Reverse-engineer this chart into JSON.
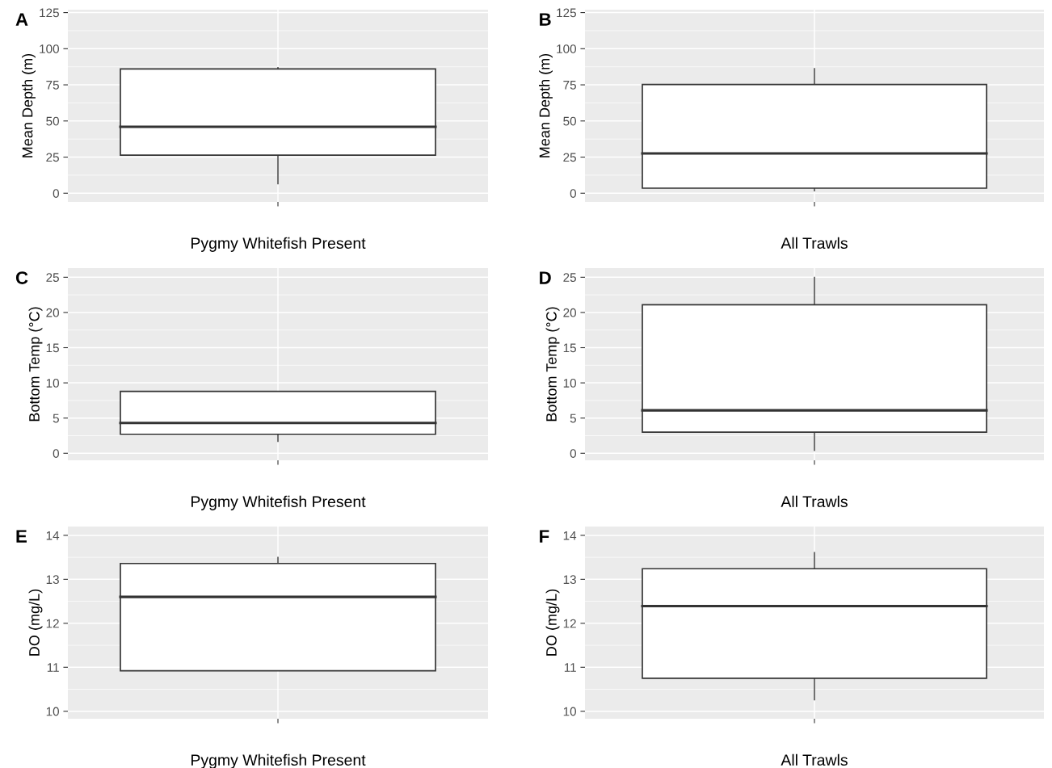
{
  "chart_data": [
    {
      "type": "box",
      "title": "A",
      "ylabel": "Mean Depth (m)",
      "xlabel": "Pygmy Whitefish Present",
      "categories": [
        null
      ],
      "boxes": [
        {
          "low": 6.5,
          "q1": 26.3,
          "median": 46,
          "q3": 86,
          "high": 87
        }
      ],
      "ylim": [
        -6,
        127
      ],
      "yticks": [
        0,
        25,
        50,
        75,
        100,
        125
      ],
      "grid": true
    },
    {
      "type": "box",
      "title": "B",
      "ylabel": "Mean Depth (m)",
      "xlabel": "All Trawls",
      "categories": [
        null
      ],
      "boxes": [
        {
          "low": 1.6,
          "q1": 3.5,
          "median": 27.5,
          "q3": 75.2,
          "high": 86.3
        }
      ],
      "ylim": [
        -6,
        127
      ],
      "yticks": [
        0,
        25,
        50,
        75,
        100,
        125
      ],
      "grid": true
    },
    {
      "type": "box",
      "title": "C",
      "ylabel": "Bottom Temp (°C)",
      "xlabel": "Pygmy Whitefish Present",
      "categories": [
        null
      ],
      "boxes": [
        {
          "low": 1.7,
          "q1": 2.7,
          "median": 4.3,
          "q3": 8.8,
          "high": 8.8
        }
      ],
      "ylim": [
        -1,
        26.3
      ],
      "yticks": [
        0,
        5,
        10,
        15,
        20,
        25
      ],
      "grid": true
    },
    {
      "type": "box",
      "title": "D",
      "ylabel": "Bottom Temp (°C)",
      "xlabel": "All Trawls",
      "categories": [
        null
      ],
      "boxes": [
        {
          "low": 0.4,
          "q1": 3.0,
          "median": 6.1,
          "q3": 21.1,
          "high": 25
        }
      ],
      "ylim": [
        -1,
        26.3
      ],
      "yticks": [
        0,
        5,
        10,
        15,
        20,
        25
      ],
      "grid": true
    },
    {
      "type": "box",
      "title": "E",
      "ylabel": "DO (mg/L)",
      "xlabel": "Pygmy Whitefish Present",
      "categories": [
        null
      ],
      "boxes": [
        {
          "low": 10.92,
          "q1": 10.92,
          "median": 12.6,
          "q3": 13.36,
          "high": 13.5
        }
      ],
      "ylim": [
        9.83,
        14.2
      ],
      "yticks": [
        10,
        11,
        12,
        13,
        14
      ],
      "grid": true
    },
    {
      "type": "box",
      "title": "F",
      "ylabel": "DO (mg/L)",
      "xlabel": "All Trawls",
      "categories": [
        null
      ],
      "boxes": [
        {
          "low": 10.26,
          "q1": 10.75,
          "median": 12.39,
          "q3": 13.24,
          "high": 13.61
        }
      ],
      "ylim": [
        9.83,
        14.2
      ],
      "yticks": [
        10,
        11,
        12,
        13,
        14
      ],
      "grid": true
    }
  ]
}
